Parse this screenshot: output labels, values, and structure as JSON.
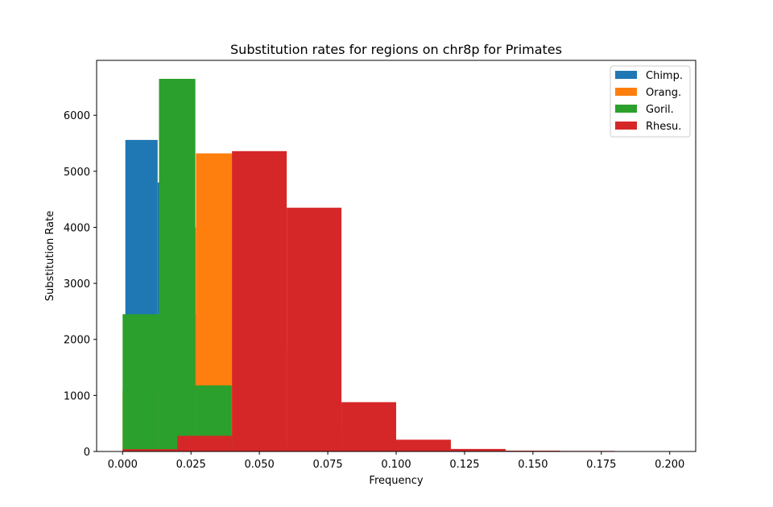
{
  "chart_data": {
    "type": "histogram",
    "title": "Substitution rates for regions on chr8p for Primates",
    "xlabel": "Frequency",
    "ylabel": "Substitution Rate",
    "xlim": [
      -0.0095,
      0.2095
    ],
    "ylim": [
      0,
      6980
    ],
    "xticks": [
      0.0,
      0.025,
      0.05,
      0.075,
      0.1,
      0.125,
      0.15,
      0.175,
      0.2
    ],
    "xtick_labels": [
      "0.000",
      "0.025",
      "0.050",
      "0.075",
      "0.100",
      "0.125",
      "0.150",
      "0.175",
      "0.200"
    ],
    "yticks": [
      0,
      1000,
      2000,
      3000,
      4000,
      5000,
      6000
    ],
    "ytick_labels": [
      "0",
      "1000",
      "2000",
      "3000",
      "4000",
      "5000",
      "6000"
    ],
    "legend_position": "top-right",
    "series": [
      {
        "name": "Chimp.",
        "color": "#1f77b4",
        "bin_edges": [
          0.001,
          0.0128,
          0.0246,
          0.0364,
          0.0482,
          0.06,
          0.0718,
          0.0836,
          0.0954,
          0.1072,
          0.119
        ],
        "counts": [
          5560,
          4800,
          2460,
          600,
          150,
          40,
          10,
          5,
          2,
          1
        ]
      },
      {
        "name": "Orang.",
        "color": "#ff7f0e",
        "bin_edges": [
          0.0,
          0.0134,
          0.0268,
          0.0402,
          0.0536,
          0.067,
          0.0804,
          0.0938,
          0.1072,
          0.1206,
          0.134
        ],
        "counts": [
          1100,
          4000,
          5320,
          4680,
          1800,
          450,
          100,
          25,
          8,
          2
        ]
      },
      {
        "name": "Goril.",
        "color": "#2ca02c",
        "bin_edges": [
          0.0,
          0.0133,
          0.0266,
          0.0399,
          0.0532,
          0.0665,
          0.0798,
          0.0931,
          0.1064,
          0.1197,
          0.133
        ],
        "counts": [
          2450,
          6650,
          1180,
          290,
          70,
          20,
          6,
          3,
          1,
          1
        ]
      },
      {
        "name": "Rhesu.",
        "color": "#d62728",
        "bin_edges": [
          0.0,
          0.02,
          0.04,
          0.06,
          0.08,
          0.1,
          0.12,
          0.14,
          0.16,
          0.18,
          0.2
        ],
        "counts": [
          40,
          280,
          5360,
          4350,
          880,
          210,
          45,
          15,
          10,
          0
        ]
      }
    ]
  }
}
